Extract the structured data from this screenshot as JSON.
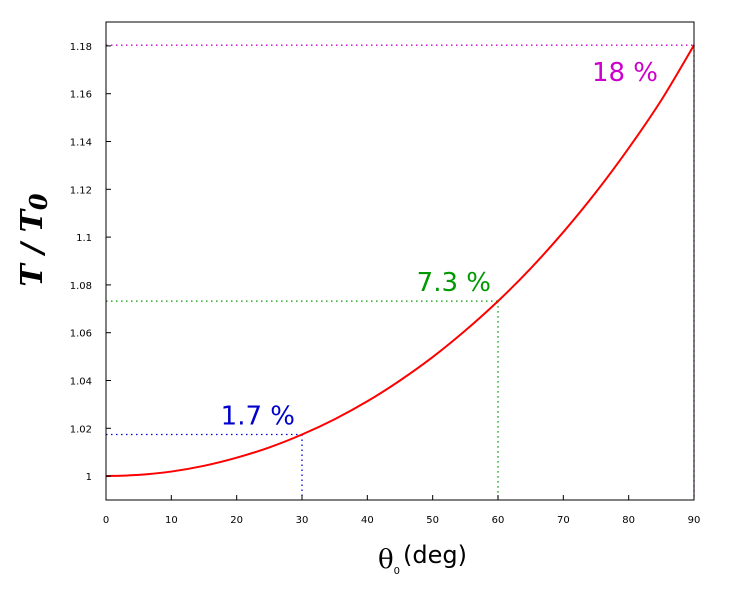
{
  "chart_data": {
    "type": "line",
    "title": "",
    "ylabel": "T / T0",
    "ylabel_main": "T / T",
    "ylabel_sub": "0",
    "xlabel_symbol": "θ",
    "xlabel_sub": "0",
    "xlabel_unit": "(deg)",
    "xlim": [
      0,
      90
    ],
    "ylim": [
      0.99,
      1.19
    ],
    "xticks": [
      0,
      10,
      20,
      30,
      40,
      50,
      60,
      70,
      80,
      90
    ],
    "xtick_labels": [
      "0",
      "10",
      "20",
      "30",
      "40",
      "50",
      "60",
      "70",
      "80",
      "90"
    ],
    "yticks": [
      1.0,
      1.02,
      1.04,
      1.06,
      1.08,
      1.1,
      1.12,
      1.14,
      1.16,
      1.18
    ],
    "ytick_labels": [
      "1",
      "1.02",
      "1.04",
      "1.06",
      "1.08",
      "1.1",
      "1.12",
      "1.14",
      "1.16",
      "1.18"
    ],
    "grid": false,
    "series": [
      {
        "color": "#ff0000",
        "x": [
          0,
          5,
          10,
          15,
          20,
          25,
          30,
          35,
          40,
          45,
          50,
          55,
          60,
          65,
          70,
          75,
          80,
          85,
          90
        ],
        "values": [
          1.0,
          1.0005,
          1.0019,
          1.0043,
          1.0077,
          1.012,
          1.0174,
          1.0238,
          1.0313,
          1.04,
          1.0498,
          1.0609,
          1.0732,
          1.0869,
          1.1021,
          1.1188,
          1.1372,
          1.1573,
          1.1803
        ]
      }
    ],
    "annotations": [
      {
        "text": "1.7 %",
        "x": 30,
        "y": 1.0174,
        "color": "#0000cc"
      },
      {
        "text": "7.3 %",
        "x": 60,
        "y": 1.0732,
        "color": "#009900"
      },
      {
        "text": "18 %",
        "x": 90,
        "y": 1.1803,
        "color": "#cc00cc"
      }
    ]
  }
}
